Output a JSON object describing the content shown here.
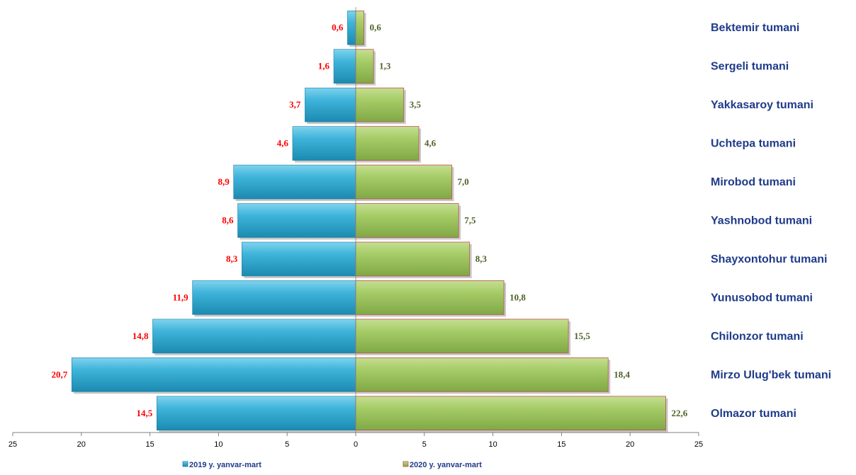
{
  "chart_data": {
    "type": "bar",
    "orientation": "horizontal",
    "layout": "population-pyramid",
    "categories": [
      "Bektemir tumani",
      "Sergeli tumani",
      "Yakkasaroy tumani",
      "Uchtepa tumani",
      "Mirobod tumani",
      "Yashnobod tumani",
      "Shayxontohur tumani",
      "Yunusobod tumani",
      "Chilonzor tumani",
      "Mirzo Ulug'bek tumani",
      "Olmazor tumani"
    ],
    "series": [
      {
        "name": "2019 y. yanvar-mart",
        "side": "left",
        "color": "#31a9cf",
        "values": [
          0.6,
          1.6,
          3.7,
          4.6,
          8.9,
          8.6,
          8.3,
          11.9,
          14.8,
          20.7,
          14.5
        ],
        "labels": [
          "0,6",
          "1,6",
          "3,7",
          "4,6",
          "8,9",
          "8,6",
          "8,3",
          "11,9",
          "14,8",
          "20,7",
          "14,5"
        ]
      },
      {
        "name": "2020 y. yanvar-mart",
        "side": "right",
        "color": "#9bc65a",
        "values": [
          0.6,
          1.3,
          3.5,
          4.6,
          7.0,
          7.5,
          8.3,
          10.8,
          15.5,
          18.4,
          22.6
        ],
        "labels": [
          "0,6",
          "1,3",
          "3,5",
          "4,6",
          "7,0",
          "7,5",
          "8,3",
          "10,8",
          "15,5",
          "18,4",
          "22,6"
        ]
      }
    ],
    "xlim": [
      -25,
      25
    ],
    "xticks": [
      -25,
      -20,
      -15,
      -10,
      -5,
      0,
      5,
      10,
      15,
      20,
      25
    ],
    "xtick_labels": [
      "25",
      "20",
      "15",
      "10",
      "5",
      "0",
      "5",
      "10",
      "15",
      "20",
      "25"
    ],
    "legend_position": "bottom",
    "grid": false,
    "colors": {
      "left_value_label": "#ff0000",
      "right_value_label": "#4f6228",
      "category_label": "#1f3b8a"
    }
  }
}
